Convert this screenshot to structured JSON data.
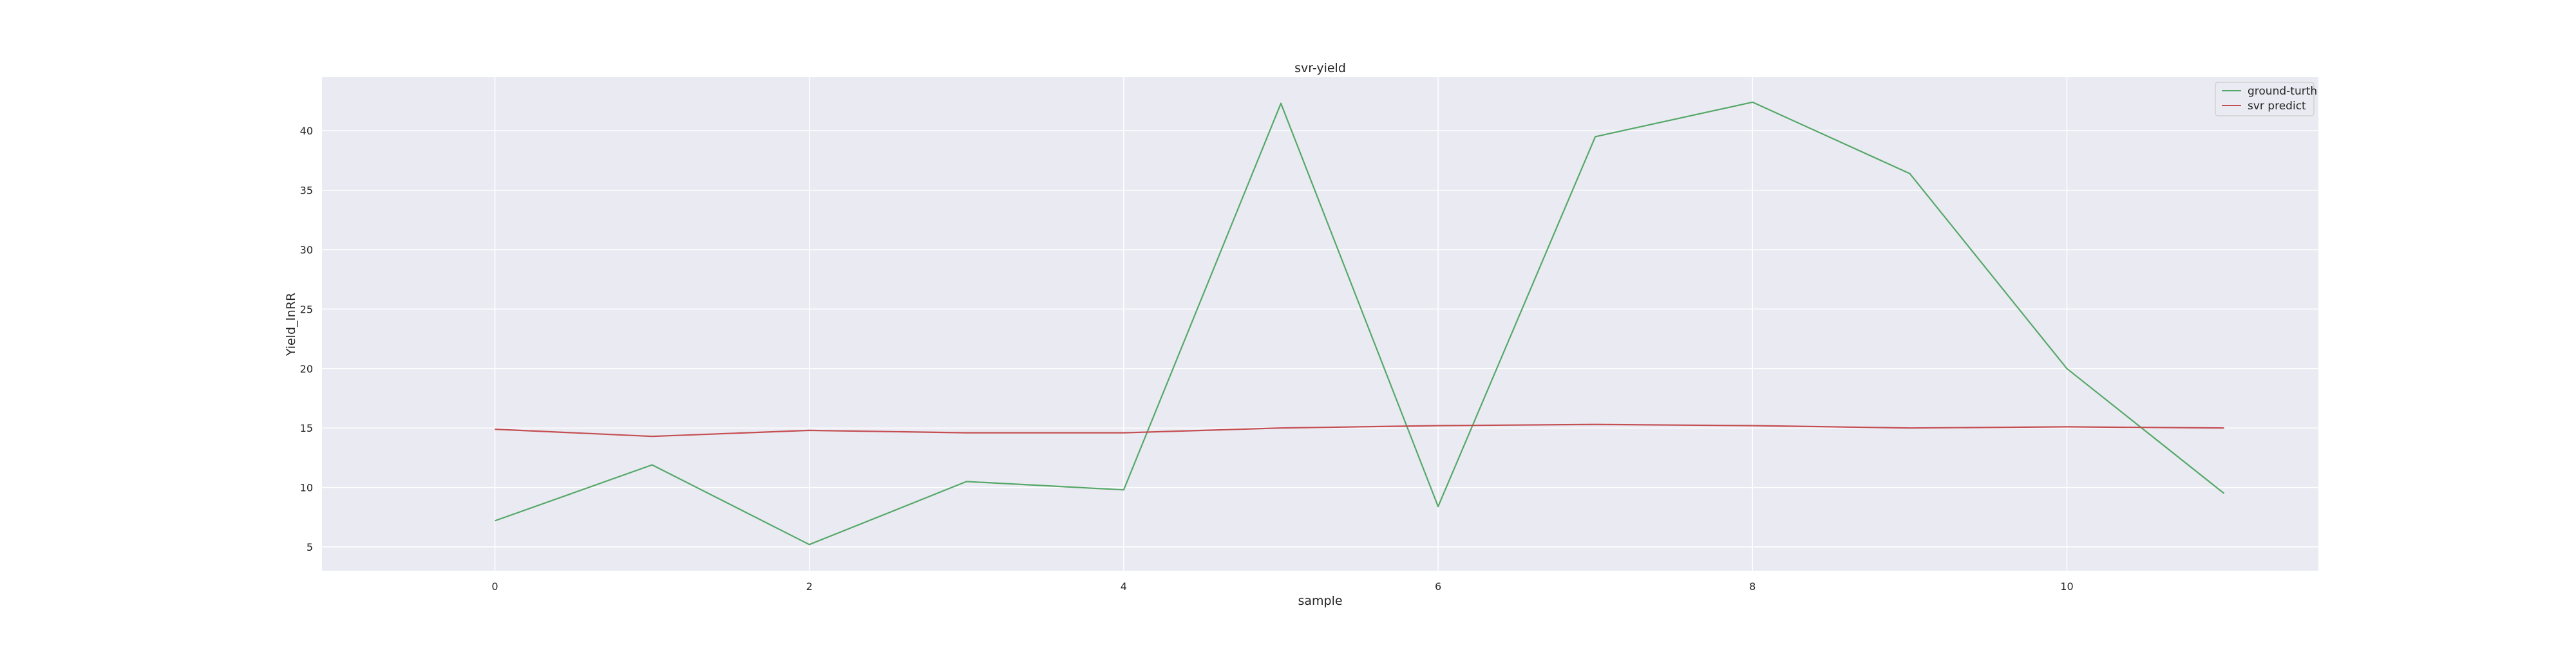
{
  "chart_data": {
    "type": "line",
    "title": "svr-yield",
    "xlabel": "sample",
    "ylabel": "Yield_lnRR",
    "x": [
      0,
      1,
      2,
      3,
      4,
      5,
      6,
      7,
      8,
      9,
      10,
      11
    ],
    "xlim": [
      -1.1,
      11.6
    ],
    "ylim": [
      3.0,
      44.5
    ],
    "xticks": [
      0,
      2,
      4,
      6,
      8,
      10
    ],
    "yticks": [
      5,
      10,
      15,
      20,
      25,
      30,
      35,
      40
    ],
    "grid": true,
    "legend_position": "top-right",
    "colors": {
      "plot_background": "#eaeaf2",
      "grid": "#ffffff"
    },
    "series": [
      {
        "name": "ground-turth",
        "color": "#55a868",
        "values": [
          7.2,
          11.9,
          5.2,
          10.5,
          9.8,
          42.3,
          8.4,
          39.5,
          42.4,
          36.4,
          20.0,
          9.5
        ]
      },
      {
        "name": "svr predict",
        "color": "#c44e52",
        "values": [
          14.9,
          14.3,
          14.8,
          14.6,
          14.6,
          15.0,
          15.2,
          15.3,
          15.2,
          15.0,
          15.1,
          15.0
        ]
      }
    ]
  }
}
